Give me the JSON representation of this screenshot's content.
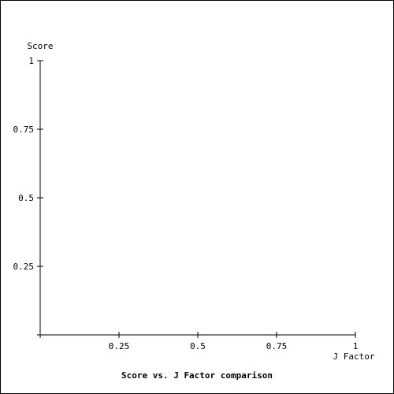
{
  "chart_data": {
    "type": "scatter",
    "title": "Score vs. J Factor comparison",
    "xlabel": "J Factor",
    "ylabel": "Score",
    "xlim": [
      0,
      1
    ],
    "ylim": [
      0,
      1
    ],
    "x_ticks": [
      "0.25",
      "0.5",
      "0.75",
      "1"
    ],
    "y_ticks": [
      "1",
      "0.75",
      "0.5",
      "0.25"
    ],
    "x_tick_values": [
      0.25,
      0.5,
      0.75,
      1
    ],
    "y_tick_values": [
      1,
      0.75,
      0.5,
      0.25
    ],
    "grid": false,
    "series": []
  },
  "colors": {
    "axis": "#000000",
    "background": "#ffffff"
  }
}
